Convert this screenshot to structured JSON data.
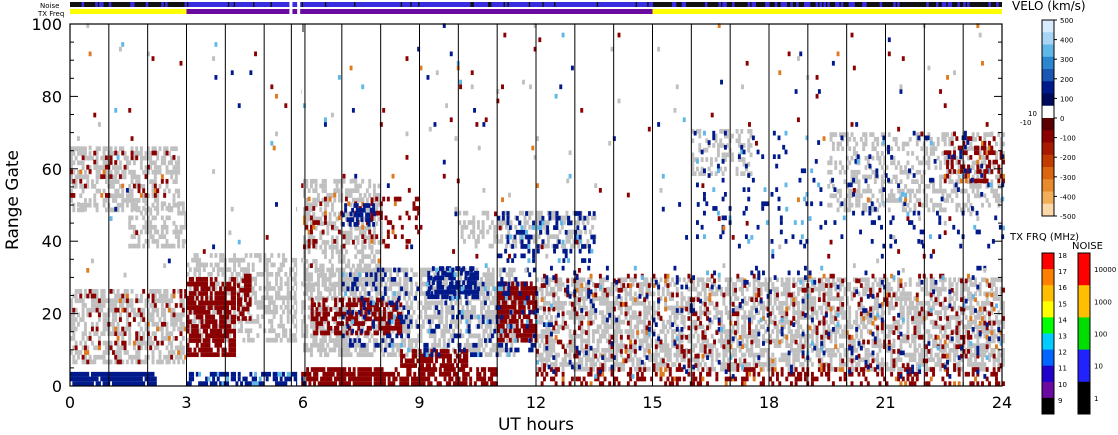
{
  "chart_data": {
    "type": "heatmap",
    "xlabel": "UT hours",
    "ylabel": "Range Gate",
    "xlim": [
      0,
      24
    ],
    "ylim": [
      0,
      100
    ],
    "x_ticks": [
      "0",
      "3",
      "6",
      "9",
      "12",
      "15",
      "18",
      "21",
      "24"
    ],
    "y_ticks": [
      "0",
      "20",
      "40",
      "60",
      "80",
      "100"
    ],
    "status_bars": {
      "noise_label": "Noise",
      "txfreq_label": "TX Freq",
      "tx_segments": [
        {
          "start": 0,
          "end": 3,
          "color": "#ffff00"
        },
        {
          "start": 3,
          "end": 15,
          "color": "#6a0aa0"
        },
        {
          "start": 15,
          "end": 24,
          "color": "#ffff00"
        }
      ],
      "gap_hours": [
        5.65,
        5.85
      ]
    },
    "colors": {
      "ground_scatter": "#c0c0c0",
      "neg_velocity": "#8b0000",
      "pos_velocity": "#001a8c",
      "light_blue": "#5fb8e8",
      "orange": "#e07a1e"
    },
    "patches": [
      {
        "x0": 0.0,
        "x1": 2.9,
        "y0": 6,
        "y1": 26,
        "kind": "ground",
        "density": 0.55
      },
      {
        "x0": 0.0,
        "x1": 2.8,
        "y0": 48,
        "y1": 66,
        "kind": "ground",
        "density": 0.5
      },
      {
        "x0": 1.5,
        "x1": 3.0,
        "y0": 38,
        "y1": 50,
        "kind": "ground",
        "density": 0.45
      },
      {
        "x0": 3.0,
        "x1": 6.0,
        "y0": 12,
        "y1": 36,
        "kind": "ground",
        "density": 0.5
      },
      {
        "x0": 6.0,
        "x1": 8.0,
        "y0": 26,
        "y1": 56,
        "kind": "ground",
        "density": 0.45
      },
      {
        "x0": 6.0,
        "x1": 11.5,
        "y0": 8,
        "y1": 32,
        "kind": "ground",
        "density": 0.55
      },
      {
        "x0": 10.0,
        "x1": 13.5,
        "y0": 38,
        "y1": 48,
        "kind": "ground",
        "density": 0.4
      },
      {
        "x0": 12.0,
        "x1": 24.0,
        "y0": 4,
        "y1": 30,
        "kind": "ground",
        "density": 0.55
      },
      {
        "x0": 16.0,
        "x1": 17.5,
        "y0": 58,
        "y1": 70,
        "kind": "ground",
        "density": 0.35
      },
      {
        "x0": 19.5,
        "x1": 24.0,
        "y0": 48,
        "y1": 70,
        "kind": "ground",
        "density": 0.35
      },
      {
        "x0": 0.0,
        "x1": 3.0,
        "y0": 6,
        "y1": 26,
        "kind": "red",
        "density": 0.12
      },
      {
        "x0": 0.0,
        "x1": 2.5,
        "y0": 52,
        "y1": 64,
        "kind": "red",
        "density": 0.1
      },
      {
        "x0": 3.0,
        "x1": 4.2,
        "y0": 8,
        "y1": 30,
        "kind": "redsolid",
        "density": 0.7
      },
      {
        "x0": 4.3,
        "x1": 4.6,
        "y0": 18,
        "y1": 30,
        "kind": "redsolid",
        "density": 0.7
      },
      {
        "x0": 5.9,
        "x1": 8.0,
        "y0": 0,
        "y1": 5,
        "kind": "redsolid",
        "density": 0.8
      },
      {
        "x0": 8.0,
        "x1": 11.0,
        "y0": 0,
        "y1": 5,
        "kind": "redsolid",
        "density": 0.6
      },
      {
        "x0": 6.2,
        "x1": 8.5,
        "y0": 14,
        "y1": 24,
        "kind": "redsolid",
        "density": 0.55
      },
      {
        "x0": 8.5,
        "x1": 10.2,
        "y0": 5,
        "y1": 10,
        "kind": "redsolid",
        "density": 0.6
      },
      {
        "x0": 11.0,
        "x1": 12.0,
        "y0": 12,
        "y1": 28,
        "kind": "redsolid",
        "density": 0.75
      },
      {
        "x0": 12.0,
        "x1": 24.0,
        "y0": 0,
        "y1": 5,
        "kind": "red",
        "density": 0.35
      },
      {
        "x0": 12.0,
        "x1": 24.0,
        "y0": 5,
        "y1": 30,
        "kind": "red",
        "density": 0.1
      },
      {
        "x0": 6.0,
        "x1": 9.0,
        "y0": 38,
        "y1": 52,
        "kind": "red",
        "density": 0.15
      },
      {
        "x0": 22.5,
        "x1": 24.0,
        "y0": 56,
        "y1": 68,
        "kind": "red",
        "density": 0.35
      },
      {
        "x0": 0.0,
        "x1": 2.2,
        "y0": 0,
        "y1": 3,
        "kind": "bluesolid",
        "density": 0.85
      },
      {
        "x0": 3.0,
        "x1": 6.0,
        "y0": 0,
        "y1": 3,
        "kind": "blue",
        "density": 0.55
      },
      {
        "x0": 9.2,
        "x1": 10.5,
        "y0": 24,
        "y1": 32,
        "kind": "bluesolid",
        "density": 0.6
      },
      {
        "x0": 7.0,
        "x1": 12.0,
        "y0": 8,
        "y1": 32,
        "kind": "blue",
        "density": 0.15
      },
      {
        "x0": 11.0,
        "x1": 13.5,
        "y0": 34,
        "y1": 48,
        "kind": "blue",
        "density": 0.22
      },
      {
        "x0": 7.0,
        "x1": 7.8,
        "y0": 44,
        "y1": 50,
        "kind": "bluesolid",
        "density": 0.6
      },
      {
        "x0": 12.0,
        "x1": 24.0,
        "y0": 2,
        "y1": 32,
        "kind": "blue",
        "density": 0.05
      },
      {
        "x0": 16.0,
        "x1": 24.0,
        "y0": 38,
        "y1": 70,
        "kind": "blue",
        "density": 0.05
      },
      {
        "x0": 0.0,
        "x1": 24.0,
        "y0": 30,
        "y1": 100,
        "kind": "sparse",
        "density": 0.012
      }
    ],
    "velocity_scale": {
      "title": "VELO (km/s)",
      "ticks": [
        "500",
        "400",
        "300",
        "200",
        "100",
        "0",
        "-100",
        "-200",
        "-300",
        "-400",
        "-500"
      ],
      "side_labels": [
        "10",
        "-10"
      ],
      "colors": [
        "#d9ecff",
        "#a8d4f5",
        "#5fb8e8",
        "#2a86cf",
        "#1a56b4",
        "#001a8c",
        "#000a5a",
        "#ffffff",
        "#5a0000",
        "#8b0000",
        "#a81a00",
        "#c23c00",
        "#d9660e",
        "#e98a2c",
        "#f3ae5a",
        "#fbd8a8"
      ]
    },
    "txfreq_scale": {
      "title": "TX FRQ (MHz)",
      "ticks": [
        "18",
        "17",
        "16",
        "15",
        "14",
        "13",
        "12",
        "11",
        "10",
        "9"
      ],
      "colors": [
        "#ff0000",
        "#ff7f00",
        "#ffbf00",
        "#ffff00",
        "#00ff00",
        "#00ccff",
        "#0066ff",
        "#2200cc",
        "#6a0aa0",
        "#000000"
      ]
    },
    "noise_scale": {
      "title": "NOISE",
      "ticks": [
        "10000",
        "1000",
        "100",
        "10",
        "1"
      ],
      "colors": [
        "#ff0000",
        "#ffbf00",
        "#00dd00",
        "#2222ff",
        "#000000"
      ]
    }
  }
}
